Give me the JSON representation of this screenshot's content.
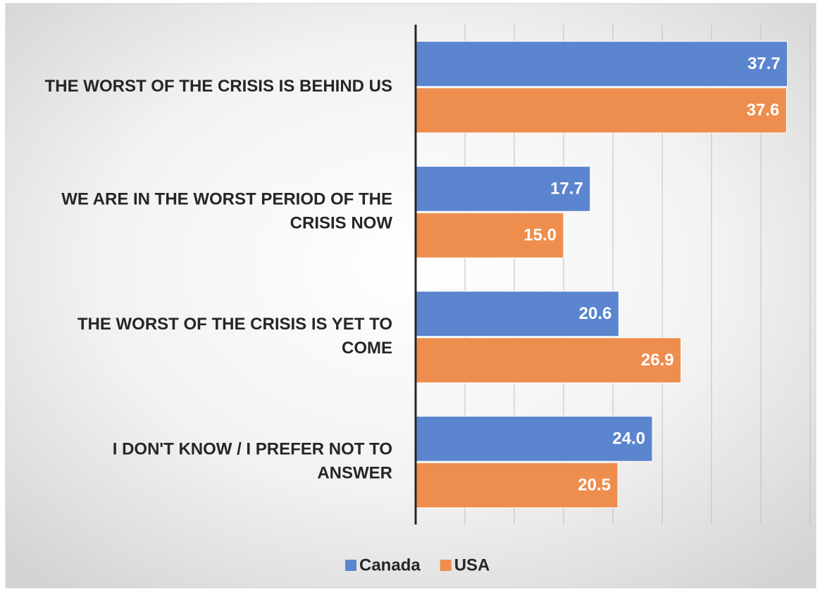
{
  "chart_data": {
    "type": "bar",
    "orientation": "horizontal",
    "categories": [
      "THE WORST OF THE CRISIS IS BEHIND US",
      "WE ARE IN THE WORST PERIOD OF THE CRISIS NOW",
      "THE WORST OF THE CRISIS IS YET TO COME",
      "I DON'T KNOW / I PREFER NOT TO ANSWER"
    ],
    "series": [
      {
        "name": "Canada",
        "color": "#5b85cf",
        "values": [
          37.7,
          17.7,
          20.6,
          24.0
        ],
        "value_labels": [
          "37.7",
          "17.7",
          "20.6",
          "24.0"
        ]
      },
      {
        "name": "USA",
        "color": "#ee8e4e",
        "values": [
          37.6,
          15.0,
          26.9,
          20.5
        ],
        "value_labels": [
          "37.6",
          "15.0",
          "26.9",
          "20.5"
        ]
      }
    ],
    "xlim": [
      0,
      40
    ],
    "xticks": [
      0,
      5,
      10,
      15,
      20,
      25,
      30,
      35,
      40
    ],
    "grid": true,
    "legend": "bottom"
  }
}
